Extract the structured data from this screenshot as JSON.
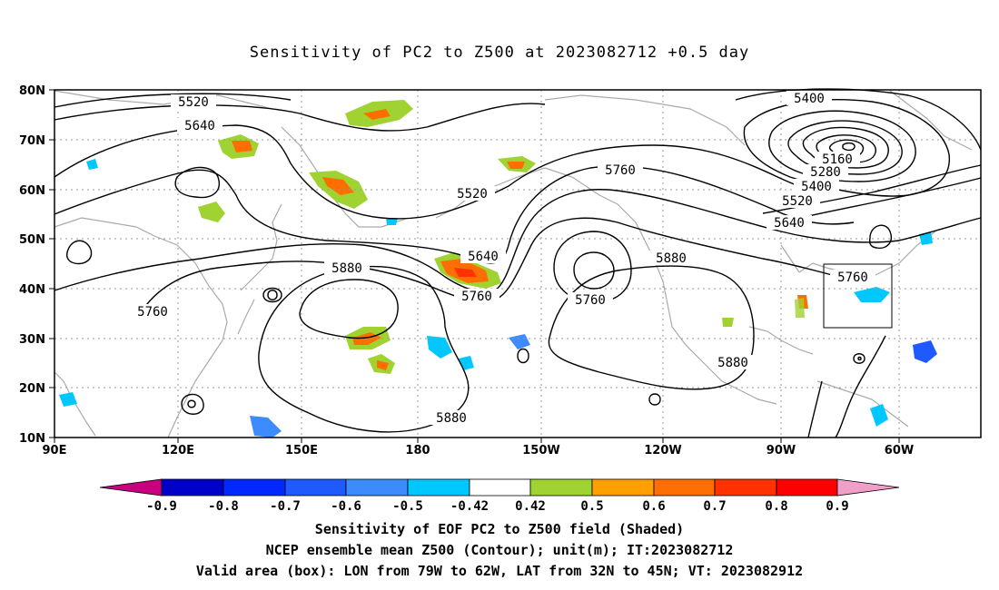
{
  "title": "Sensitivity of PC2 to Z500 at 2023082712 +0.5 day",
  "lat_labels": [
    "80N",
    "70N",
    "60N",
    "50N",
    "40N",
    "30N",
    "20N",
    "10N"
  ],
  "lon_labels": [
    "90E",
    "120E",
    "150E",
    "180",
    "150W",
    "120W",
    "90W",
    "60W"
  ],
  "contour_labels": [
    "5520",
    "5640",
    "5520",
    "5400",
    "5160",
    "5280",
    "5400",
    "5520",
    "5640",
    "5760",
    "5640",
    "5760",
    "5880",
    "5760",
    "5880",
    "5760",
    "5760",
    "5880",
    "5880",
    "5760"
  ],
  "colorbar": {
    "labels": [
      "-0.9",
      "-0.8",
      "-0.7",
      "-0.6",
      "-0.5",
      "-0.42",
      "0.42",
      "0.5",
      "0.6",
      "0.7",
      "0.8",
      "0.9"
    ],
    "colors": [
      "#c8007f",
      "#0000c8",
      "#0028ff",
      "#1e5aff",
      "#3c8cff",
      "#00c8ff",
      "#ffffff",
      "#a0d232",
      "#ffa000",
      "#ff6e00",
      "#ff3200",
      "#ff0000",
      "#f0a0c8"
    ]
  },
  "captions": {
    "line1": "Sensitivity of EOF PC2 to Z500 field (Shaded)",
    "line2": "NCEP ensemble mean Z500 (Contour); unit(m); IT:2023082712",
    "line3": "Valid area (box): LON from 79W to 62W, LAT from 32N to 45N; VT: 2023082912"
  }
}
